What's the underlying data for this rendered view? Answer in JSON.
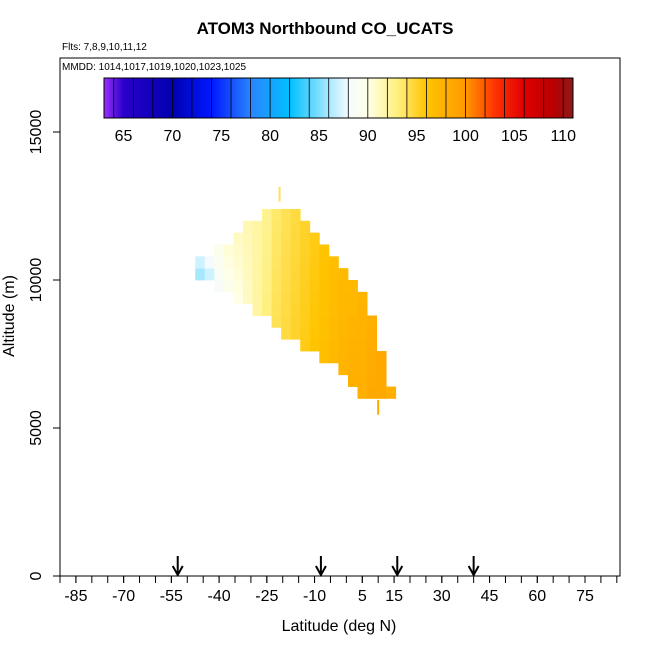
{
  "chart_data": {
    "type": "heatmap",
    "title": "ATOM3 Northbound CO_UCATS",
    "flights_label": "Flts: 7,8,9,10,11,12",
    "dates_label": "MMDD: 1014,1017,1019,1020,1023,1025",
    "xlabel": "Latitude (deg N)",
    "ylabel": "Altitude (m)",
    "xlim": [
      -90,
      86
    ],
    "ylim": [
      0,
      17500
    ],
    "xticks": [
      -85,
      -70,
      -55,
      -40,
      -25,
      -10,
      5,
      15,
      30,
      45,
      60,
      75
    ],
    "xtick_minor_step": 5,
    "yticks": [
      0,
      5000,
      10000,
      15000
    ],
    "colorbar": {
      "min": 63,
      "max": 111,
      "ticks": [
        65,
        70,
        75,
        80,
        85,
        90,
        95,
        100,
        105,
        110
      ],
      "color_stops": [
        {
          "v": 63,
          "c": "#9b30ff"
        },
        {
          "v": 65,
          "c": "#2b00cc"
        },
        {
          "v": 70,
          "c": "#0000b0"
        },
        {
          "v": 74,
          "c": "#0018ff"
        },
        {
          "v": 78,
          "c": "#2a84ff"
        },
        {
          "v": 82,
          "c": "#00c0ff"
        },
        {
          "v": 86,
          "c": "#a8e8ff"
        },
        {
          "v": 88,
          "c": "#f4fbff"
        },
        {
          "v": 90,
          "c": "#ffffe6"
        },
        {
          "v": 93,
          "c": "#fff080"
        },
        {
          "v": 96,
          "c": "#ffc400"
        },
        {
          "v": 100,
          "c": "#ff9900"
        },
        {
          "v": 103,
          "c": "#ff3300"
        },
        {
          "v": 106,
          "c": "#e00000"
        },
        {
          "v": 109,
          "c": "#b80000"
        },
        {
          "v": 111,
          "c": "#8b1a1a"
        }
      ]
    },
    "flight_markers_lat": [
      -53,
      -8,
      16,
      40
    ],
    "column_bin_width_deg": 3,
    "row_bin_height_m": 400,
    "columns": [
      {
        "lat": -46,
        "y_bot": 10000,
        "y_top": 10800,
        "v0": 86,
        "v1": 87
      },
      {
        "lat": -43,
        "y_bot": 10000,
        "y_top": 10800,
        "v0": 87,
        "v1": 88
      },
      {
        "lat": -40,
        "y_bot": 9600,
        "y_top": 11200,
        "v0": 88.5,
        "v1": 89.5
      },
      {
        "lat": -37,
        "y_bot": 9600,
        "y_top": 11200,
        "v0": 89.5,
        "v1": 90.5
      },
      {
        "lat": -34,
        "y_bot": 9200,
        "y_top": 11600,
        "v0": 90,
        "v1": 91
      },
      {
        "lat": -31,
        "y_bot": 9200,
        "y_top": 12000,
        "v0": 91,
        "v1": 91.5
      },
      {
        "lat": -28,
        "y_bot": 8800,
        "y_top": 12000,
        "v0": 92,
        "v1": 92
      },
      {
        "lat": -25,
        "y_bot": 8800,
        "y_top": 12400,
        "v0": 93,
        "v1": 92.5
      },
      {
        "lat": -22,
        "y_bot": 8400,
        "y_top": 12400,
        "v0": 94,
        "v1": 93.5
      },
      {
        "lat": -19,
        "y_bot": 8000,
        "y_top": 12400,
        "v0": 94.5,
        "v1": 94
      },
      {
        "lat": -16,
        "y_bot": 8000,
        "y_top": 12400,
        "v0": 95,
        "v1": 94.5
      },
      {
        "lat": -13,
        "y_bot": 7600,
        "y_top": 12000,
        "v0": 95.5,
        "v1": 95
      },
      {
        "lat": -10,
        "y_bot": 7600,
        "y_top": 11600,
        "v0": 96,
        "v1": 95.5
      },
      {
        "lat": -7,
        "y_bot": 7200,
        "y_top": 11200,
        "v0": 96.5,
        "v1": 96
      },
      {
        "lat": -4,
        "y_bot": 7200,
        "y_top": 10800,
        "v0": 97,
        "v1": 96.5
      },
      {
        "lat": -1,
        "y_bot": 6800,
        "y_top": 10400,
        "v0": 97.5,
        "v1": 97
      },
      {
        "lat": 2,
        "y_bot": 6400,
        "y_top": 10000,
        "v0": 98,
        "v1": 97
      },
      {
        "lat": 5,
        "y_bot": 6000,
        "y_top": 9600,
        "v0": 98,
        "v1": 97.5
      },
      {
        "lat": 8,
        "y_bot": 6000,
        "y_top": 8800,
        "v0": 98.5,
        "v1": 98
      },
      {
        "lat": 11,
        "y_bot": 6000,
        "y_top": 7600,
        "v0": 98.5,
        "v1": 98.5
      },
      {
        "lat": 14,
        "y_bot": 6000,
        "y_top": 6400,
        "v0": 98,
        "v1": 98
      }
    ],
    "sparse_points": [
      {
        "lat": -21,
        "alt": 12900,
        "v": 94
      },
      {
        "lat": 10,
        "alt": 5700,
        "v": 98.5
      }
    ]
  }
}
